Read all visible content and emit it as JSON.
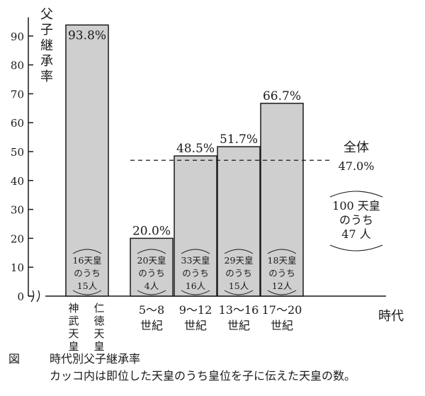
{
  "chart_data": {
    "type": "bar",
    "ylabel": "父子継承率",
    "xlabel": "時代",
    "ylim": [
      0,
      95
    ],
    "yticks": [
      0,
      10,
      20,
      30,
      40,
      50,
      60,
      70,
      80,
      90
    ],
    "grid": false,
    "axis_break": true,
    "categories": [
      {
        "label": "神武天皇",
        "label_lines": [
          "神",
          "武",
          "天",
          "皇"
        ],
        "label2_lines": [
          "仁",
          "徳",
          "天",
          "皇"
        ],
        "label2": "仁徳天皇"
      },
      {
        "label": "5〜8世紀",
        "label_lines": [
          "5〜8",
          "世紀"
        ]
      },
      {
        "label": "9〜12世紀",
        "label_lines": [
          "9〜12",
          "世紀"
        ]
      },
      {
        "label": "13〜16世紀",
        "label_lines": [
          "13〜16",
          "世紀"
        ]
      },
      {
        "label": "17〜20世紀",
        "label_lines": [
          "17〜20",
          "世紀"
        ]
      }
    ],
    "values": [
      93.8,
      20.0,
      48.5,
      51.7,
      66.7
    ],
    "value_labels": [
      "93.8%",
      "20.0%",
      "48.5%",
      "51.7%",
      "66.7%"
    ],
    "inner_notes": [
      [
        "16天皇",
        "のうち",
        "15人"
      ],
      [
        "20天皇",
        "のうち",
        "4人"
      ],
      [
        "33天皇",
        "のうち",
        "16人"
      ],
      [
        "29天皇",
        "のうち",
        "15人"
      ],
      [
        "18天皇",
        "のうち",
        "12人"
      ]
    ],
    "reference_line": {
      "value": 47.0,
      "label": "全体",
      "value_label": "47.0%",
      "note_lines": [
        "100 天皇",
        "のうち",
        "47 人"
      ]
    },
    "bar_color": "#cfcfcf",
    "edge_color": "#1a1a1a"
  },
  "caption": {
    "label": "図",
    "title": "時代別父子継承率",
    "note": "カッコ内は即位した天皇のうち皇位を子に伝えた天皇の数。"
  }
}
